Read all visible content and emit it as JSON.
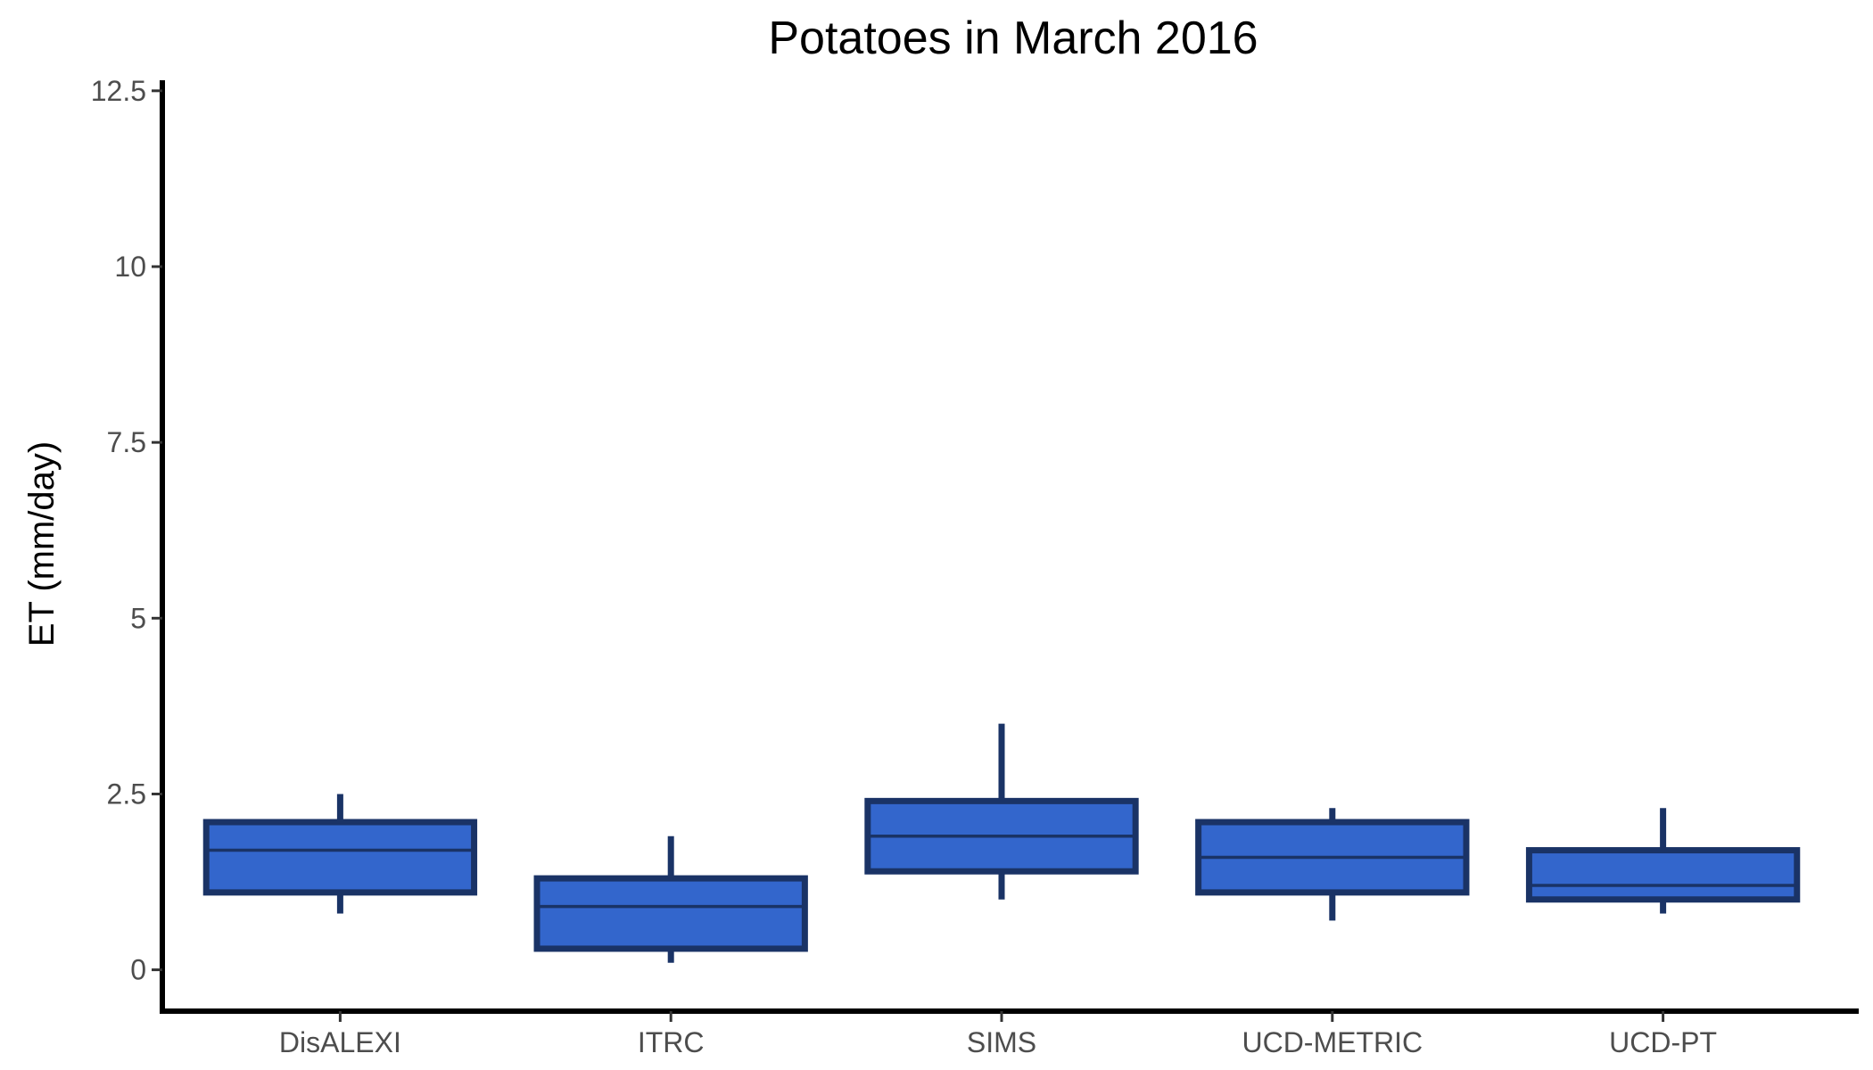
{
  "chart_data": {
    "type": "boxplot",
    "title": "Potatoes in March 2016",
    "xlabel": "",
    "ylabel": "ET (mm/day)",
    "ylim": [
      -0.55,
      12.65
    ],
    "yticks": [
      0,
      2.5,
      5,
      7.5,
      10,
      12.5
    ],
    "ytick_labels": [
      "0",
      "2.5",
      "5",
      "7.5",
      "10",
      "12.5"
    ],
    "categories": [
      "DisALEXI",
      "ITRC",
      "SIMS",
      "UCD-METRIC",
      "UCD-PT"
    ],
    "boxes": [
      {
        "category": "DisALEXI",
        "whisker_low": 0.8,
        "q1": 1.1,
        "median": 1.7,
        "q3": 2.1,
        "whisker_high": 2.5
      },
      {
        "category": "ITRC",
        "whisker_low": 0.1,
        "q1": 0.3,
        "median": 0.9,
        "q3": 1.3,
        "whisker_high": 1.9
      },
      {
        "category": "SIMS",
        "whisker_low": 1.0,
        "q1": 1.4,
        "median": 1.9,
        "q3": 2.4,
        "whisker_high": 3.5
      },
      {
        "category": "UCD-METRIC",
        "whisker_low": 0.7,
        "q1": 1.1,
        "median": 1.6,
        "q3": 2.1,
        "whisker_high": 2.3
      },
      {
        "category": "UCD-PT",
        "whisker_low": 0.8,
        "q1": 1.0,
        "median": 1.2,
        "q3": 1.7,
        "whisker_high": 2.3
      }
    ],
    "grid": false,
    "colors": {
      "box_fill": "#3366cc",
      "box_outline": "#1a3366",
      "axis": "#000000",
      "tick_text": "#4d4d4d"
    }
  }
}
